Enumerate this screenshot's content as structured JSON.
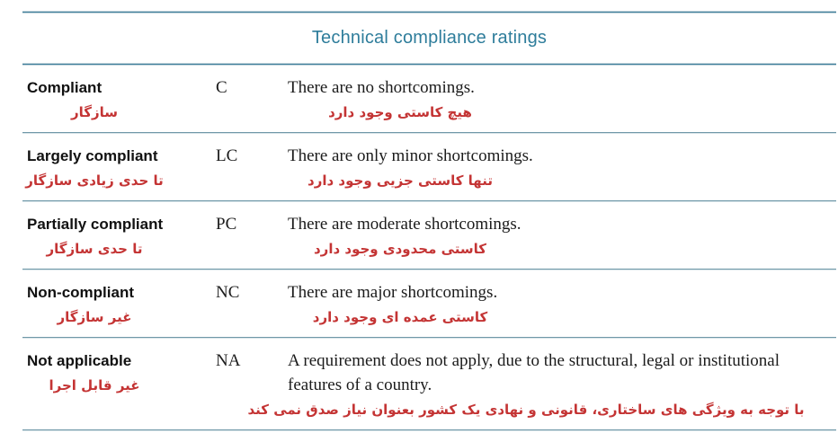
{
  "title": "Technical compliance ratings",
  "colors": {
    "accent_teal": "#2e7d9b",
    "line_teal": "#3f7f9c",
    "line_light": "#c3d4db",
    "persian_red": "#c43434",
    "text_dark": "#1b1b1b"
  },
  "table": {
    "rows": [
      {
        "rating_en": "Compliant",
        "rating_fa": "سازگار",
        "code": "C",
        "desc_en": "There are no shortcomings.",
        "desc_fa": "هیچ کاستی وجود دارد"
      },
      {
        "rating_en": "Largely compliant",
        "rating_fa": "تا حدی زیادی سازگار",
        "code": "LC",
        "desc_en": "There are only minor shortcomings.",
        "desc_fa": "تنها کاستی جزیی وجود دارد"
      },
      {
        "rating_en": "Partially compliant",
        "rating_fa": "تا حدی سازگار",
        "code": "PC",
        "desc_en": "There are moderate shortcomings.",
        "desc_fa": "کاستی محدودی وجود دارد"
      },
      {
        "rating_en": "Non-compliant",
        "rating_fa": "غیر سازگار",
        "code": "NC",
        "desc_en": "There are major shortcomings.",
        "desc_fa": "کاستی عمده ای وجود دارد"
      },
      {
        "rating_en": "Not applicable",
        "rating_fa": "غیر قابل اجرا",
        "code": "NA",
        "desc_en": "A requirement does not apply, due to the structural, legal or institutional features of a country.",
        "desc_fa": "با توجه به ویژگی های ساختاری، قانونی و نهادی یک کشور بعنوان نیاز صدق نمی کند"
      }
    ]
  }
}
